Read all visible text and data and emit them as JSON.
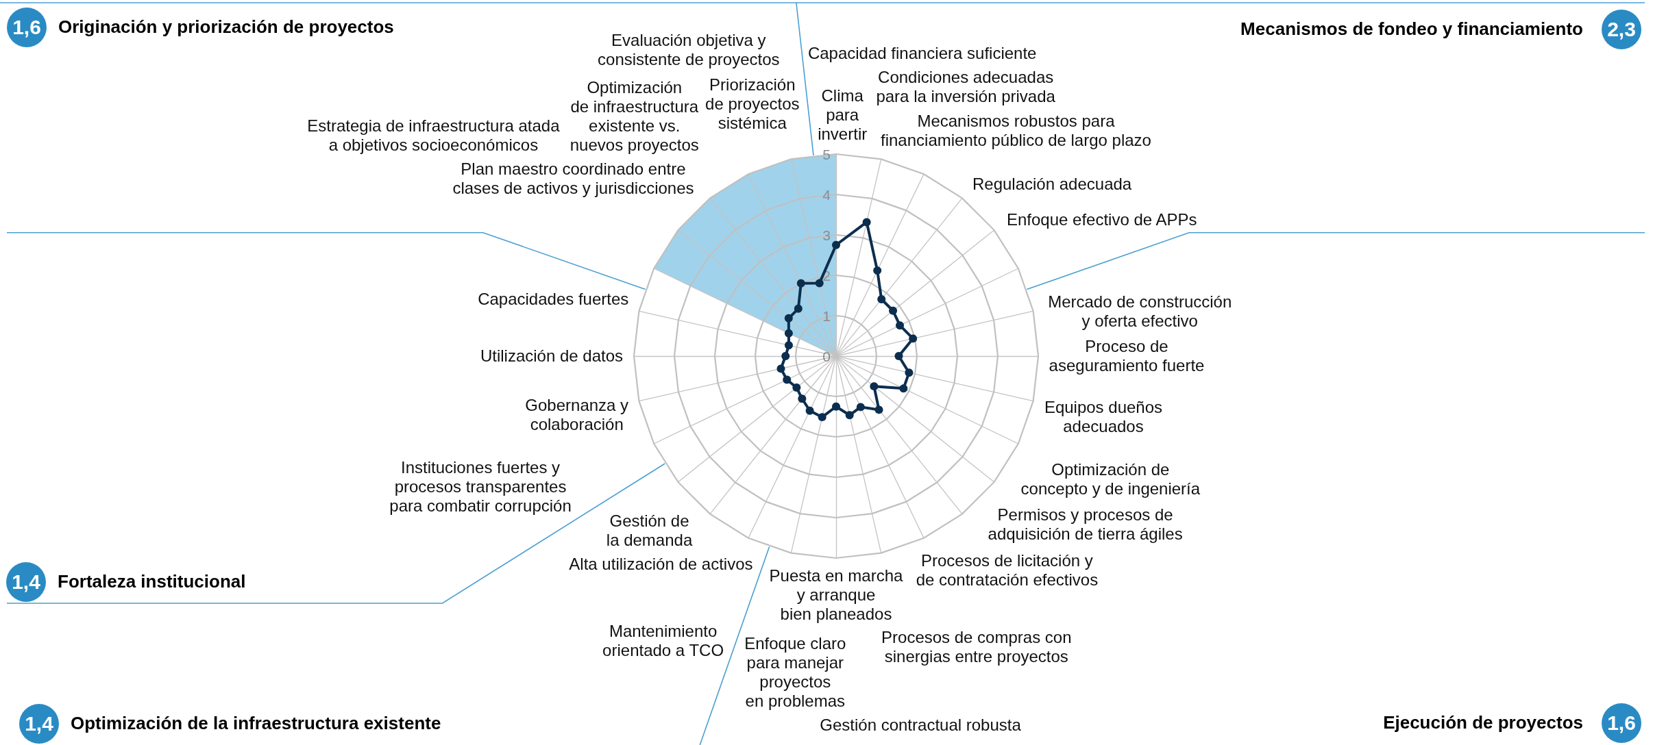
{
  "chart_data": {
    "type": "radar",
    "categories": [
      "Clima para invertir",
      "Capacidad financiera suficiente",
      "Condiciones adecuadas para la inversión privada",
      "Mecanismos robustos para financiamiento público de largo plazo",
      "Regulación adecuada",
      "Enfoque efectivo de APPs",
      "Mercado de construcción y oferta efectivo",
      "Proceso de aseguramiento fuerte",
      "Equipos dueños adecuados",
      "Optimización de concepto y de ingeniería",
      "Permisos y procesos de adquisición de tierra ágiles",
      "Procesos de licitación y de contratación efectivos",
      "Procesos de compras con sinergias entre proyectos",
      "Gestión contractual robusta",
      "Puesta en marcha y arranque bien planeados",
      "Enfoque claro para manejar proyectos en problemas",
      "Mantenimiento orientado a TCO",
      "Alta utilización de activos",
      "Gestión de la demanda",
      "Instituciones fuertes y procesos transparentes para combatir corrupción",
      "Gobernanza y colaboración",
      "Utilización de datos",
      "Capacidades fuertes",
      "Estrategia de infraestructura atada a objetivos socioeconómicos",
      "Plan maestro coordinado entre clases de activos y jurisdicciones",
      "Optimización de infraestructura existente vs. nuevos proyectos",
      "Evaluación objetiva y consistente de proyectos",
      "Priorización de proyectos sistémica"
    ],
    "series": [
      {
        "type": "area",
        "color": "#a1d2eb",
        "marker": "none",
        "values": [
          5,
          0,
          0,
          0,
          0,
          0,
          0,
          0,
          0,
          0,
          0,
          0,
          0,
          0,
          0,
          0,
          0,
          0,
          0,
          0,
          0,
          0,
          0,
          5,
          5,
          5,
          5,
          5
        ]
      },
      {
        "color": "#0c2e4e",
        "marker": "circle",
        "line_style": "solid",
        "values": [
          2.75,
          3.4,
          2.35,
          1.8,
          1.8,
          1.75,
          1.95,
          1.55,
          1.85,
          1.85,
          1.2,
          1.7,
          1.4,
          1.5,
          1.25,
          1.55,
          1.5,
          1.35,
          1.25,
          1.35,
          1.4,
          1.25,
          1.2,
          1.3,
          1.5,
          1.5,
          2.0,
          1.85
        ]
      }
    ],
    "ylim": [
      0,
      5
    ],
    "yticks": [
      0,
      1,
      2,
      3,
      4,
      5
    ],
    "grid": true,
    "annotations": [
      "1,6",
      "Originación y priorización de proyectos",
      "2,3",
      "Mecanismos de fondeo y financiamiento",
      "1,4",
      "Fortaleza institucional",
      "1,4",
      "Optimización de la infraestructura existente",
      "1,6",
      "Ejecución de proyectos"
    ]
  }
}
